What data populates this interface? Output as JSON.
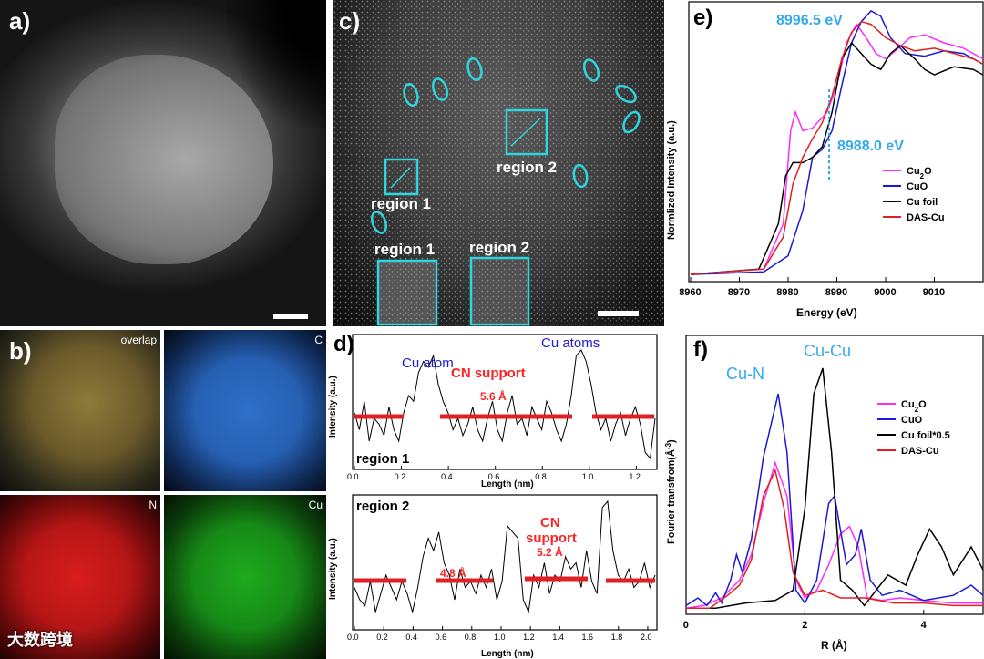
{
  "panels": {
    "a": {
      "label": "a)"
    },
    "b": {
      "label": "b)",
      "tiles": [
        "overlap",
        "C",
        "N",
        "Cu"
      ]
    },
    "c": {
      "label": "c)",
      "region1": "region 1",
      "region2": "region 2",
      "inset1": "region 1",
      "inset2": "region 2"
    },
    "d": {
      "label": "d)"
    },
    "e": {
      "label": "e)",
      "annot_edge1": "8996.5 eV",
      "annot_edge2": "8988.0 eV"
    },
    "f": {
      "label": "f)",
      "annot_cun": "Cu-N",
      "annot_cucu": "Cu-Cu"
    }
  },
  "watermark": "大数跨境",
  "colors": {
    "cyan": "#2fd5e0",
    "magenta": "#ff2bff",
    "blue": "#1a1ad6",
    "black": "#000000",
    "red": "#e02020",
    "red_label": "#ff2020",
    "annot_blue": "#33aaee"
  },
  "chart_data": [
    {
      "id": "d1",
      "type": "line",
      "ylabel": "Intensity (a.u.)",
      "xlabel": "Length (nm)",
      "xlim": [
        0,
        1.28
      ],
      "xticks": [
        "0.0",
        "0.2",
        "0.4",
        "0.6",
        "0.8",
        "1.0",
        "1.2"
      ],
      "annotations": [
        "Cu atom",
        "Cu atoms",
        "CN support",
        "5.6 Å",
        "region 1"
      ],
      "series": [
        {
          "values": [
            0.45,
            0.3,
            0.55,
            0.2,
            0.4,
            0.35,
            0.25,
            0.5,
            0.3,
            0.2,
            0.45,
            0.6,
            0.55,
            0.8,
            0.9,
            0.85,
            0.95,
            0.7,
            0.55,
            0.45,
            0.3,
            0.4,
            0.25,
            0.35,
            0.5,
            0.3,
            0.2,
            0.4,
            0.55,
            0.3,
            0.2,
            0.45,
            0.6,
            0.35,
            0.4,
            0.25,
            0.5,
            0.4,
            0.3,
            0.55,
            0.45,
            0.3,
            0.2,
            0.35,
            0.6,
            0.95,
            1.0,
            0.9,
            0.7,
            0.45,
            0.3,
            0.4,
            0.2,
            0.35,
            0.45,
            0.25,
            0.4,
            0.5,
            0.35,
            0.1,
            0.05,
            0.4
          ]
        }
      ]
    },
    {
      "id": "d2",
      "type": "line",
      "ylabel": "Intensity (a.u.)",
      "xlabel": "Length (nm)",
      "xlim": [
        0,
        2.05
      ],
      "xticks": [
        "0.0",
        "0.2",
        "0.4",
        "0.6",
        "0.8",
        "1.0",
        "1.2",
        "1.4",
        "1.6",
        "1.8",
        "2.0"
      ],
      "annotations": [
        "region 2",
        "4.8 Å",
        "CN support",
        "5.2 Å"
      ],
      "series": [
        {
          "values": [
            0.3,
            0.2,
            0.15,
            0.35,
            0.1,
            0.25,
            0.4,
            0.3,
            0.2,
            0.35,
            0.25,
            0.1,
            0.3,
            0.55,
            0.7,
            0.6,
            0.75,
            0.5,
            0.4,
            0.2,
            0.45,
            0.3,
            0.35,
            0.25,
            0.4,
            0.3,
            0.45,
            0.2,
            0.35,
            0.8,
            0.75,
            0.7,
            0.2,
            0.1,
            0.4,
            0.3,
            0.5,
            0.25,
            0.4,
            0.35,
            0.55,
            0.45,
            0.5,
            0.3,
            0.6,
            0.35,
            0.25,
            0.95,
            1.0,
            0.6,
            0.4,
            0.35,
            0.45,
            0.3,
            0.35,
            0.5,
            0.3,
            0.4
          ]
        }
      ]
    },
    {
      "id": "e",
      "type": "line",
      "xlabel": "Energy (eV)",
      "ylabel": "Normlized Intensity (a.u.)",
      "xlim": [
        8960,
        9020
      ],
      "xticks": [
        8960,
        8970,
        8980,
        8990,
        9000,
        9010
      ],
      "series": [
        {
          "name": "Cu2O",
          "color": "#ff2bff",
          "points": [
            [
              8960,
              0.01
            ],
            [
              8975,
              0.03
            ],
            [
              8979,
              0.2
            ],
            [
              8980.5,
              0.55
            ],
            [
              8981.5,
              0.62
            ],
            [
              8983,
              0.55
            ],
            [
              8985,
              0.56
            ],
            [
              8988,
              0.62
            ],
            [
              8990,
              0.72
            ],
            [
              8992,
              0.88
            ],
            [
              8994,
              0.95
            ],
            [
              8996,
              0.9
            ],
            [
              8998,
              0.84
            ],
            [
              9000,
              0.82
            ],
            [
              9002,
              0.85
            ],
            [
              9005,
              0.9
            ],
            [
              9008,
              0.91
            ],
            [
              9012,
              0.88
            ],
            [
              9016,
              0.86
            ],
            [
              9020,
              0.82
            ]
          ]
        },
        {
          "name": "CuO",
          "color": "#1a1ad6",
          "points": [
            [
              8960,
              0.01
            ],
            [
              8975,
              0.02
            ],
            [
              8980,
              0.08
            ],
            [
              8983,
              0.25
            ],
            [
              8985,
              0.45
            ],
            [
              8987,
              0.48
            ],
            [
              8989,
              0.55
            ],
            [
              8991,
              0.72
            ],
            [
              8993,
              0.88
            ],
            [
              8995,
              0.96
            ],
            [
              8997,
              1.0
            ],
            [
              8999,
              0.98
            ],
            [
              9001,
              0.9
            ],
            [
              9004,
              0.84
            ],
            [
              9008,
              0.83
            ],
            [
              9012,
              0.85
            ],
            [
              9016,
              0.84
            ],
            [
              9020,
              0.8
            ]
          ]
        },
        {
          "name": "Cu foil",
          "color": "#000000",
          "points": [
            [
              8960,
              0.01
            ],
            [
              8974,
              0.03
            ],
            [
              8978,
              0.2
            ],
            [
              8979.5,
              0.38
            ],
            [
              8981,
              0.43
            ],
            [
              8983,
              0.43
            ],
            [
              8985,
              0.45
            ],
            [
              8987,
              0.49
            ],
            [
              8989,
              0.62
            ],
            [
              8991,
              0.82
            ],
            [
              8993,
              0.88
            ],
            [
              8995,
              0.84
            ],
            [
              8997,
              0.8
            ],
            [
              8999,
              0.78
            ],
            [
              9001,
              0.84
            ],
            [
              9003,
              0.87
            ],
            [
              9006,
              0.82
            ],
            [
              9008,
              0.78
            ],
            [
              9010,
              0.76
            ],
            [
              9014,
              0.79
            ],
            [
              9018,
              0.78
            ],
            [
              9020,
              0.76
            ]
          ]
        },
        {
          "name": "DAS-Cu",
          "color": "#e02020",
          "points": [
            [
              8960,
              0.01
            ],
            [
              8975,
              0.03
            ],
            [
              8979,
              0.15
            ],
            [
              8981,
              0.35
            ],
            [
              8983,
              0.45
            ],
            [
              8985,
              0.52
            ],
            [
              8987,
              0.58
            ],
            [
              8989,
              0.68
            ],
            [
              8991,
              0.82
            ],
            [
              8993,
              0.92
            ],
            [
              8995,
              0.96
            ],
            [
              8997,
              0.95
            ],
            [
              9000,
              0.9
            ],
            [
              9003,
              0.87
            ],
            [
              9006,
              0.85
            ],
            [
              9010,
              0.86
            ],
            [
              9014,
              0.84
            ],
            [
              9018,
              0.82
            ],
            [
              9020,
              0.8
            ]
          ]
        }
      ]
    },
    {
      "id": "f",
      "type": "line",
      "xlabel": "R (Å)",
      "ylabel": "Fourier transfrom(Å-3)",
      "xlim": [
        0,
        5
      ],
      "xticks": [
        0,
        2,
        4
      ],
      "series": [
        {
          "name": "Cu2O",
          "color": "#ff2bff",
          "points": [
            [
              0,
              0.01
            ],
            [
              0.3,
              0.02
            ],
            [
              0.6,
              0.05
            ],
            [
              0.9,
              0.12
            ],
            [
              1.1,
              0.22
            ],
            [
              1.3,
              0.42
            ],
            [
              1.5,
              0.58
            ],
            [
              1.7,
              0.45
            ],
            [
              1.85,
              0.12
            ],
            [
              2.0,
              0.05
            ],
            [
              2.2,
              0.08
            ],
            [
              2.4,
              0.18
            ],
            [
              2.6,
              0.3
            ],
            [
              2.75,
              0.33
            ],
            [
              2.9,
              0.25
            ],
            [
              3.05,
              0.05
            ],
            [
              3.3,
              0.04
            ],
            [
              3.6,
              0.05
            ],
            [
              4.0,
              0.04
            ],
            [
              4.5,
              0.03
            ],
            [
              5.0,
              0.03
            ]
          ]
        },
        {
          "name": "CuO",
          "color": "#1a1ad6",
          "points": [
            [
              0,
              0.02
            ],
            [
              0.2,
              0.05
            ],
            [
              0.35,
              0.02
            ],
            [
              0.5,
              0.07
            ],
            [
              0.6,
              0.03
            ],
            [
              0.75,
              0.12
            ],
            [
              0.85,
              0.22
            ],
            [
              0.95,
              0.15
            ],
            [
              1.1,
              0.28
            ],
            [
              1.3,
              0.6
            ],
            [
              1.55,
              0.85
            ],
            [
              1.7,
              0.62
            ],
            [
              1.85,
              0.08
            ],
            [
              2.0,
              0.03
            ],
            [
              2.2,
              0.12
            ],
            [
              2.4,
              0.42
            ],
            [
              2.5,
              0.45
            ],
            [
              2.7,
              0.18
            ],
            [
              2.85,
              0.22
            ],
            [
              2.95,
              0.32
            ],
            [
              3.1,
              0.12
            ],
            [
              3.3,
              0.06
            ],
            [
              3.6,
              0.08
            ],
            [
              4.0,
              0.04
            ],
            [
              4.5,
              0.06
            ],
            [
              4.8,
              0.1
            ],
            [
              5.0,
              0.06
            ]
          ]
        },
        {
          "name": "Cu foil*0.5",
          "color": "#000000",
          "points": [
            [
              0,
              0.01
            ],
            [
              0.5,
              0.01
            ],
            [
              1.0,
              0.03
            ],
            [
              1.5,
              0.04
            ],
            [
              1.8,
              0.08
            ],
            [
              2.0,
              0.4
            ],
            [
              2.15,
              0.85
            ],
            [
              2.3,
              0.95
            ],
            [
              2.45,
              0.62
            ],
            [
              2.6,
              0.12
            ],
            [
              2.8,
              0.08
            ],
            [
              3.0,
              0.02
            ],
            [
              3.2,
              0.08
            ],
            [
              3.4,
              0.14
            ],
            [
              3.7,
              0.1
            ],
            [
              3.9,
              0.22
            ],
            [
              4.1,
              0.32
            ],
            [
              4.3,
              0.25
            ],
            [
              4.5,
              0.14
            ],
            [
              4.8,
              0.25
            ],
            [
              5.0,
              0.16
            ]
          ]
        },
        {
          "name": "DAS-Cu",
          "color": "#e02020",
          "points": [
            [
              0,
              0.01
            ],
            [
              0.4,
              0.01
            ],
            [
              0.7,
              0.06
            ],
            [
              0.9,
              0.1
            ],
            [
              1.1,
              0.2
            ],
            [
              1.3,
              0.45
            ],
            [
              1.5,
              0.55
            ],
            [
              1.65,
              0.4
            ],
            [
              1.8,
              0.15
            ],
            [
              2.0,
              0.06
            ],
            [
              2.3,
              0.08
            ],
            [
              2.6,
              0.05
            ],
            [
              3.0,
              0.05
            ],
            [
              3.5,
              0.03
            ],
            [
              4.0,
              0.03
            ],
            [
              4.5,
              0.02
            ],
            [
              5.0,
              0.02
            ]
          ]
        }
      ]
    }
  ]
}
